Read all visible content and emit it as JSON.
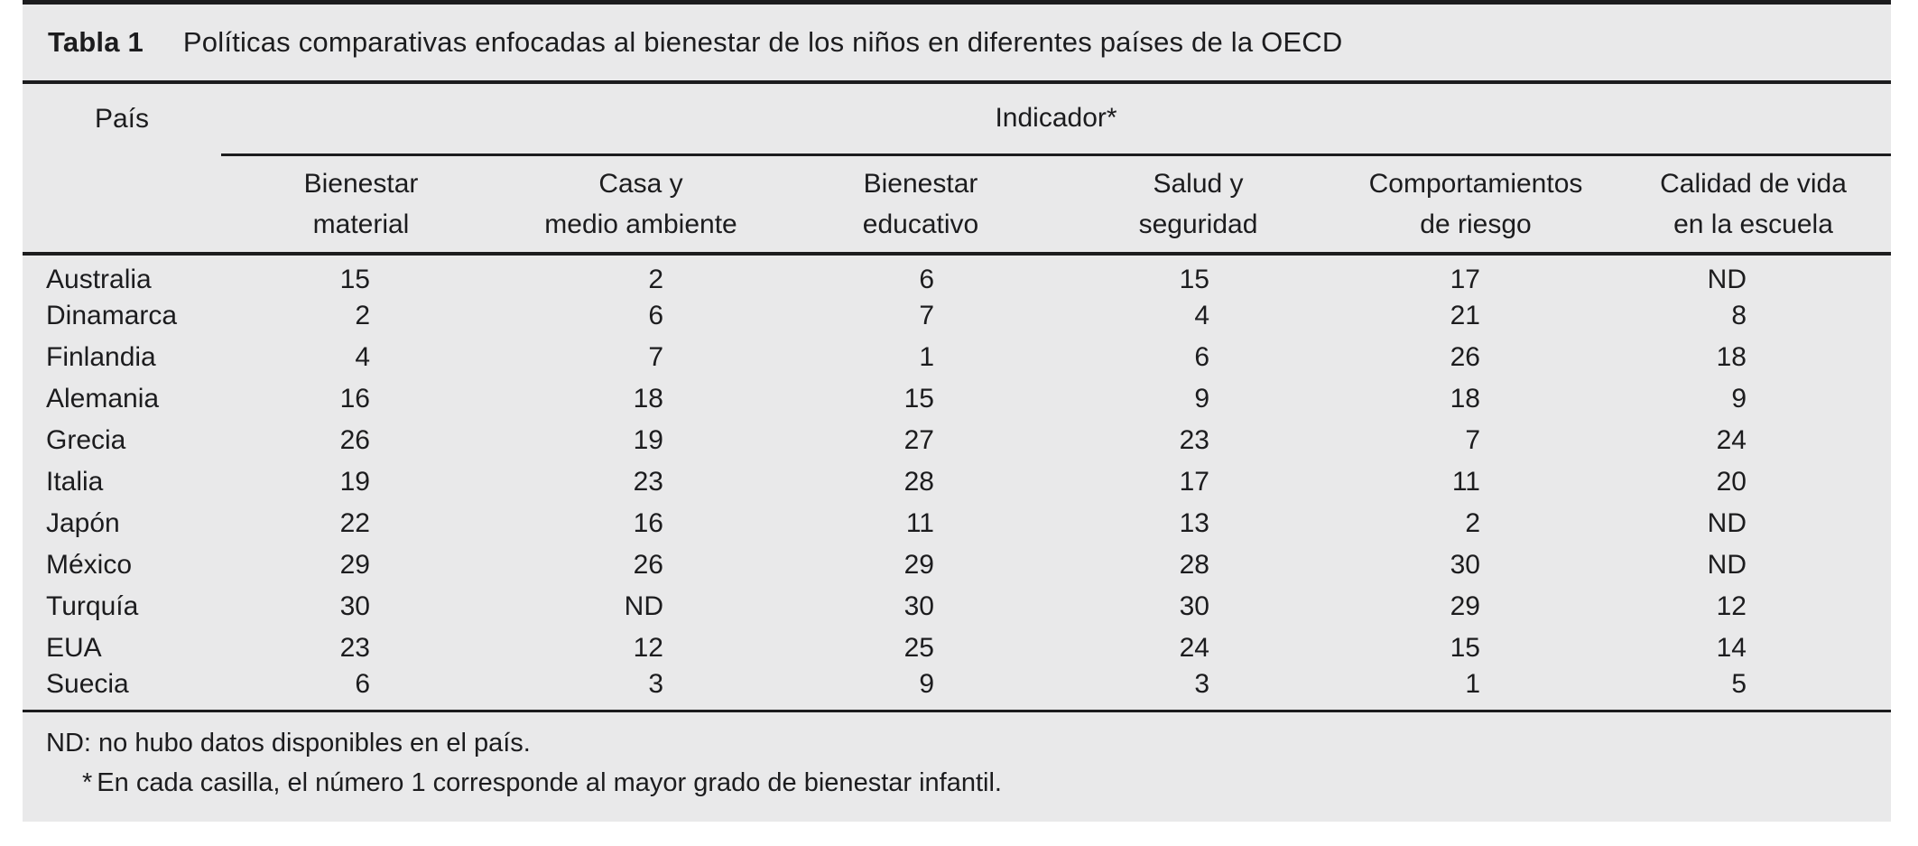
{
  "caption": {
    "label": "Tabla 1",
    "title": "Políticas comparativas enfocadas al bienestar de los niños en diferentes países de la OECD"
  },
  "table": {
    "country_header": "País",
    "group_header": "Indicador*",
    "columns": [
      {
        "line1": "Bienestar",
        "line2": "material"
      },
      {
        "line1": "Casa y",
        "line2": "medio ambiente"
      },
      {
        "line1": "Bienestar",
        "line2": "educativo"
      },
      {
        "line1": "Salud y",
        "line2": "seguridad"
      },
      {
        "line1": "Comportamientos",
        "line2": "de riesgo"
      },
      {
        "line1": "Calidad de vida",
        "line2": "en la escuela"
      }
    ],
    "rows": [
      {
        "country": "Australia",
        "values": [
          "15",
          "2",
          "6",
          "15",
          "17",
          "ND"
        ]
      },
      {
        "country": "Dinamarca",
        "values": [
          "2",
          "6",
          "7",
          "4",
          "21",
          "8"
        ]
      },
      {
        "country": "Finlandia",
        "values": [
          "4",
          "7",
          "1",
          "6",
          "26",
          "18"
        ]
      },
      {
        "country": "Alemania",
        "values": [
          "16",
          "18",
          "15",
          "9",
          "18",
          "9"
        ]
      },
      {
        "country": "Grecia",
        "values": [
          "26",
          "19",
          "27",
          "23",
          "7",
          "24"
        ]
      },
      {
        "country": "Italia",
        "values": [
          "19",
          "23",
          "28",
          "17",
          "11",
          "20"
        ]
      },
      {
        "country": "Japón",
        "values": [
          "22",
          "16",
          "11",
          "13",
          "2",
          "ND"
        ]
      },
      {
        "country": "México",
        "values": [
          "29",
          "26",
          "29",
          "28",
          "30",
          "ND"
        ]
      },
      {
        "country": "Turquía",
        "values": [
          "30",
          "ND",
          "30",
          "30",
          "29",
          "12"
        ]
      },
      {
        "country": "EUA",
        "values": [
          "23",
          "12",
          "25",
          "24",
          "15",
          "14"
        ]
      },
      {
        "country": "Suecia",
        "values": [
          "6",
          "3",
          "9",
          "3",
          "1",
          "5"
        ]
      }
    ]
  },
  "footnotes": {
    "nd_note": "ND: no hubo datos disponibles en el país.",
    "asterisk_marker": "*",
    "asterisk_note": "En cada casilla, el número 1 corresponde al mayor grado de bienestar infantil."
  },
  "colors": {
    "panel_background": "#e9e9ea",
    "text": "#1c1c1e",
    "rule": "#1c1c1e"
  }
}
